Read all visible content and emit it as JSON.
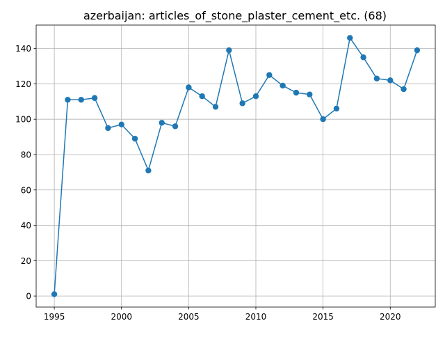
{
  "chart_data": {
    "type": "line",
    "title": "azerbaijan: articles_of_stone_plaster_cement_etc. (68)",
    "xlabel": "",
    "ylabel": "",
    "x": [
      1995,
      1996,
      1997,
      1998,
      1999,
      2000,
      2001,
      2002,
      2003,
      2004,
      2005,
      2006,
      2007,
      2008,
      2009,
      2010,
      2011,
      2012,
      2013,
      2014,
      2015,
      2016,
      2017,
      2018,
      2019,
      2020,
      2021,
      2022
    ],
    "series": [
      {
        "values": [
          1,
          111,
          111,
          112,
          95,
          97,
          89,
          71,
          98,
          96,
          118,
          113,
          107,
          139,
          109,
          113,
          125,
          119,
          115,
          114,
          100,
          106,
          146,
          135,
          123,
          122,
          117,
          139
        ],
        "color": "#1f77b4",
        "marker": "circle"
      }
    ],
    "xlim": [
      1993.65,
      1995.0
    ],
    "xlim_full": [
      1993.65,
      2023.35
    ],
    "ylim": [
      -6.25,
      153.25
    ],
    "xticks": [
      "1995",
      "2000",
      "2005",
      "2010",
      "2015",
      "2020"
    ],
    "yticks": [
      "0",
      "20",
      "40",
      "60",
      "80",
      "100",
      "120",
      "140"
    ],
    "grid": true,
    "legend": "none"
  }
}
